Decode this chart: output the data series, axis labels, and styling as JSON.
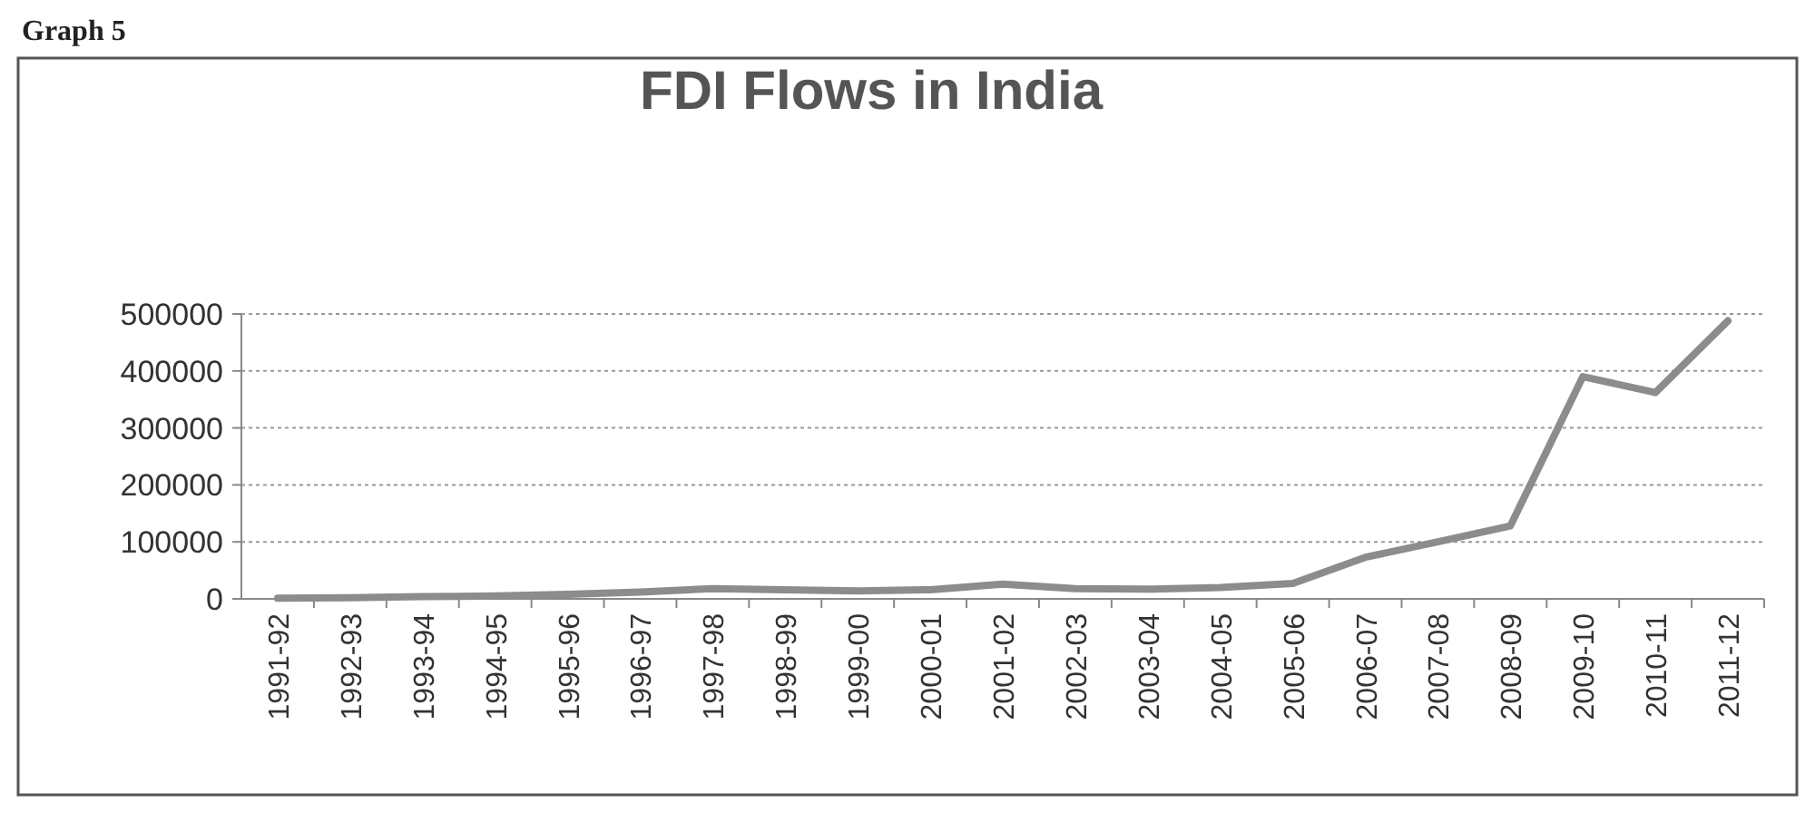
{
  "chart_data": {
    "type": "line",
    "title": "FDI Flows in India",
    "annotations": [
      "Graph 5"
    ],
    "categories": [
      "1991-92",
      "1992-93",
      "1993-94",
      "1994-95",
      "1995-96",
      "1996-97",
      "1997-98",
      "1998-99",
      "1999-00",
      "2000-01",
      "2001-02",
      "2002-03",
      "2003-04",
      "2004-05",
      "2005-06",
      "2006-07",
      "2007-08",
      "2008-09",
      "2009-10",
      "2010-11",
      "2011-12"
    ],
    "series": [
      {
        "color": "#8c8c8c",
        "values": [
          1000,
          2000,
          4000,
          5000,
          8000,
          12000,
          18000,
          16000,
          14000,
          16000,
          26000,
          18000,
          17000,
          20000,
          27000,
          73000,
          100000,
          128000,
          390000,
          362000,
          488000
        ]
      }
    ],
    "ylim": [
      0,
      500000
    ],
    "yticks": [
      0,
      100000,
      200000,
      300000,
      400000,
      500000
    ],
    "grid": "y",
    "marker": "none",
    "line_style": "solid"
  }
}
